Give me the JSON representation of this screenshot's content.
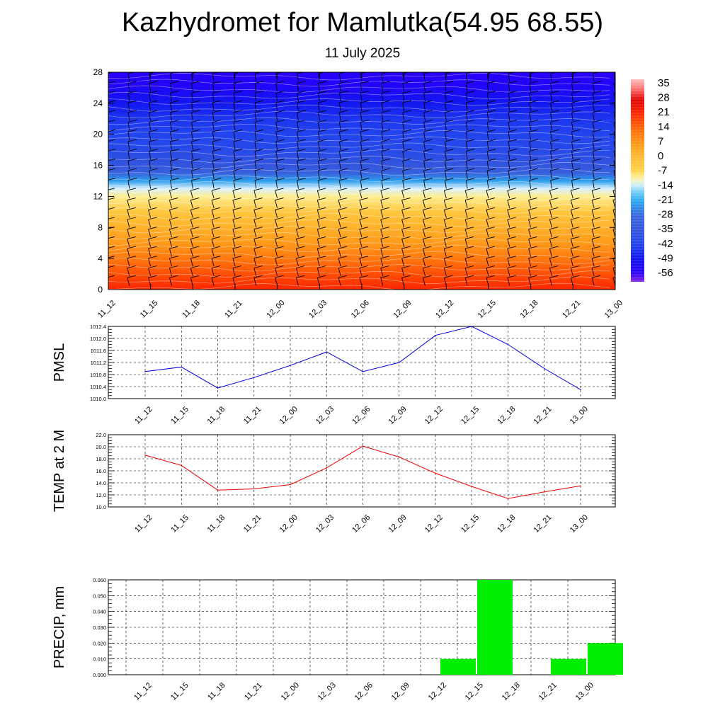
{
  "title": "Kazhydromet for Mamlutka(54.95 68.55)",
  "subtitle": "11 July 2025",
  "time_labels": [
    "11_12",
    "11_15",
    "11_18",
    "11_21",
    "12_00",
    "12_03",
    "12_06",
    "12_09",
    "12_12",
    "12_15",
    "12_18",
    "12_21",
    "13_00"
  ],
  "chart_data": [
    {
      "type": "heatmap",
      "title": "",
      "xlabel": "",
      "ylabel": "",
      "ylim": [
        0,
        28
      ],
      "y_ticks": [
        "0",
        "4",
        "8",
        "12",
        "16",
        "20",
        "24",
        "28"
      ],
      "x_ticks": [
        "11_12",
        "11_15",
        "11_18",
        "11_21",
        "12_00",
        "12_03",
        "12_06",
        "12_09",
        "12_12",
        "12_15",
        "12_18",
        "12_21",
        "13_00"
      ],
      "colorbar_labels": [
        "35",
        "28",
        "21",
        "14",
        "7",
        "0",
        "-7",
        "-14",
        "-21",
        "-28",
        "-35",
        "-42",
        "-49",
        "-56"
      ],
      "colorbar_range": [
        -60,
        38
      ],
      "temperature_profile": {
        "height": [
          0,
          2,
          4,
          6,
          8,
          10,
          12,
          13,
          14,
          15,
          16,
          18,
          20,
          22,
          24,
          26,
          28
        ],
        "value": [
          22,
          17,
          12,
          7,
          2,
          -3,
          -9,
          -13,
          -22,
          -30,
          -35,
          -40,
          -42,
          -44,
          -48,
          -53,
          -56
        ]
      },
      "overlay": "wind barbs",
      "grid": false
    },
    {
      "type": "line",
      "title": "",
      "xlabel": "",
      "ylabel": "PMSL",
      "categories": [
        "11_12",
        "11_15",
        "11_18",
        "11_21",
        "12_00",
        "12_03",
        "12_06",
        "12_09",
        "12_12",
        "12_15",
        "12_18",
        "12_21",
        "13_00"
      ],
      "values": [
        1010.9,
        1011.05,
        1010.35,
        1010.7,
        1011.1,
        1011.55,
        1010.9,
        1011.2,
        1012.1,
        1012.4,
        1011.8,
        1011.0,
        1010.3
      ],
      "ylim": [
        1010.0,
        1012.4
      ],
      "y_ticks": [
        "1010.0",
        "1010.4",
        "1010.8",
        "1011.2",
        "1011.6",
        "1012.0",
        "1012.4"
      ],
      "color": "#0000dd",
      "grid": true
    },
    {
      "type": "line",
      "title": "",
      "xlabel": "",
      "ylabel": "TEMP at 2 M",
      "categories": [
        "11_12",
        "11_15",
        "11_18",
        "11_21",
        "12_00",
        "12_03",
        "12_06",
        "12_09",
        "12_12",
        "12_15",
        "12_18",
        "12_21",
        "13_00"
      ],
      "values": [
        18.6,
        16.9,
        12.8,
        13.0,
        13.7,
        16.5,
        20.1,
        18.3,
        15.6,
        13.4,
        11.4,
        12.5,
        13.5
      ],
      "ylim": [
        10.0,
        22.0
      ],
      "y_ticks": [
        "10.0",
        "12.0",
        "14.0",
        "16.0",
        "18.0",
        "20.0",
        "22.0"
      ],
      "color": "#ee0000",
      "grid": true
    },
    {
      "type": "bar",
      "title": "",
      "xlabel": "",
      "ylabel": "PRECIP, mm",
      "categories": [
        "11_12",
        "11_15",
        "11_18",
        "11_21",
        "12_00",
        "12_03",
        "12_06",
        "12_09",
        "12_12",
        "12_15",
        "12_18",
        "12_21",
        "13_00"
      ],
      "values": [
        0,
        0,
        0,
        0,
        0,
        0,
        0,
        0,
        0.01,
        0.06,
        0,
        0.01,
        0.02
      ],
      "ylim": [
        0,
        0.06
      ],
      "y_ticks": [
        "0.000",
        "0.010",
        "0.020",
        "0.030",
        "0.040",
        "0.050",
        "0.060"
      ],
      "color": "#00ee00",
      "grid": true
    }
  ]
}
